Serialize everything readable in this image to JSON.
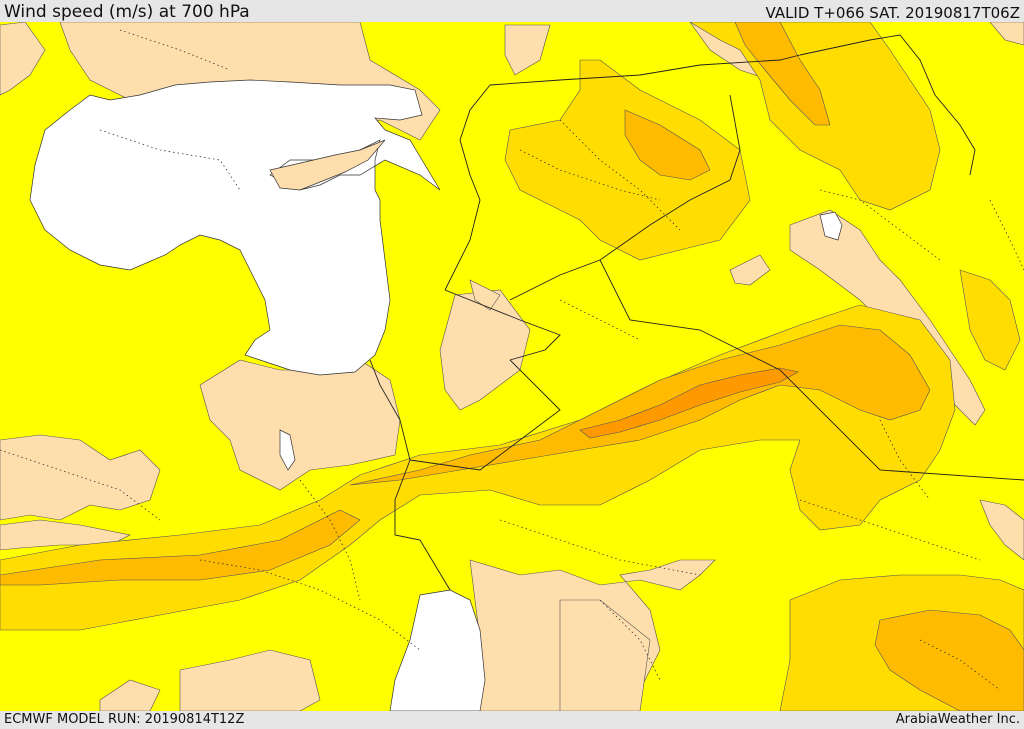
{
  "header": {
    "title": "Wind speed (m/s) at 700 hPa",
    "valid": "VALID T+066 SAT. 20190817T06Z"
  },
  "footer": {
    "model_run": "ECMWF MODEL RUN: 20190814T12Z",
    "credit": "ArabiaWeather Inc."
  },
  "palette": {
    "band_lowest": "#ffdead",
    "band_low": "#ffff00",
    "band_mid": "#ffdd00",
    "band_high": "#ffbb00",
    "band_max": "#ff9900",
    "sea": "#ffffff",
    "lines": "#333333"
  }
}
